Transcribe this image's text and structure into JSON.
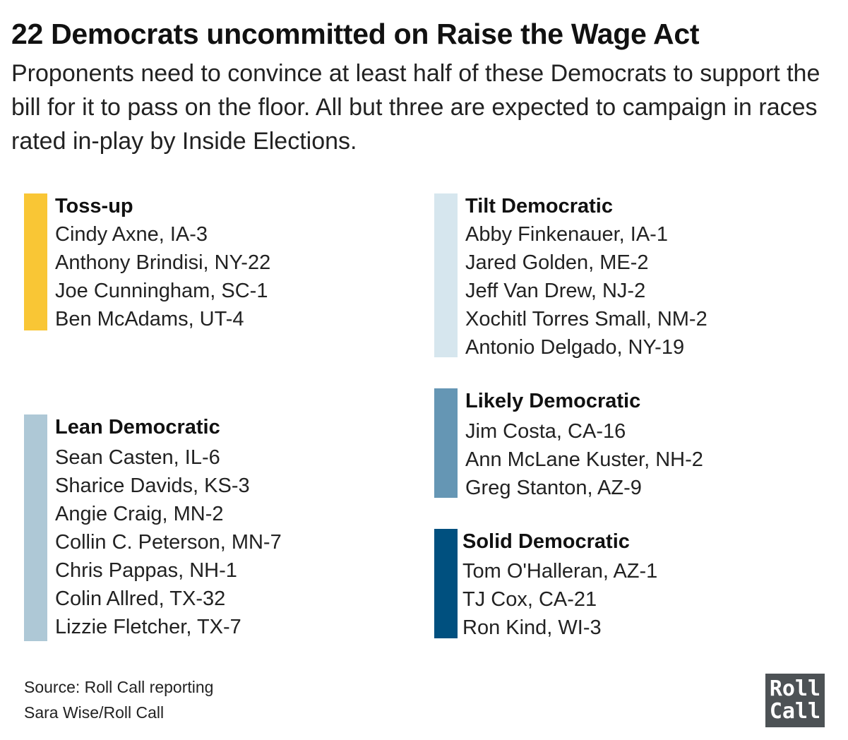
{
  "title": "22 Democrats uncommitted on Raise the Wage Act",
  "subtitle": "Proponents need to convince at least half of these Democrats to support the bill for it to pass on the floor. All but three are expected to campaign in races rated in-play by Inside Elections.",
  "groups": [
    {
      "name": "Toss-up",
      "color": "#f9c635",
      "members": [
        "Cindy Axne, IA-3",
        "Anthony Brindisi, NY-22",
        "Joe Cunningham, SC-1",
        "Ben McAdams, UT-4"
      ]
    },
    {
      "name": "Tilt Democratic",
      "color": "#d6e6ee",
      "members": [
        "Abby Finkenauer, IA-1",
        "Jared Golden, ME-2",
        "Jeff Van Drew, NJ-2",
        "Xochitl Torres Small, NM-2",
        "Antonio Delgado, NY-19"
      ]
    },
    {
      "name": "Lean Democratic",
      "color": "#aec8d6",
      "members": [
        "Sean Casten, IL-6",
        "Sharice Davids, KS-3",
        "Angie Craig, MN-2",
        "Collin C. Peterson, MN-7",
        "Chris Pappas, NH-1",
        "Colin Allred, TX-32",
        "Lizzie Fletcher, TX-7"
      ]
    },
    {
      "name": "Likely Democratic",
      "color": "#6596b4",
      "members": [
        "Jim Costa, CA-16",
        "Ann McLane Kuster, NH-2",
        "Greg Stanton, AZ-9"
      ]
    },
    {
      "name": "Solid Democratic",
      "color": "#00507f",
      "members": [
        "Tom O'Halleran, AZ-1",
        "TJ Cox, CA-21",
        "Ron Kind, WI-3"
      ]
    }
  ],
  "footer": {
    "source": "Source: Roll Call reporting",
    "credit": "Sara Wise/Roll Call"
  },
  "logo": {
    "line1": "Roll",
    "line2": "Call"
  }
}
